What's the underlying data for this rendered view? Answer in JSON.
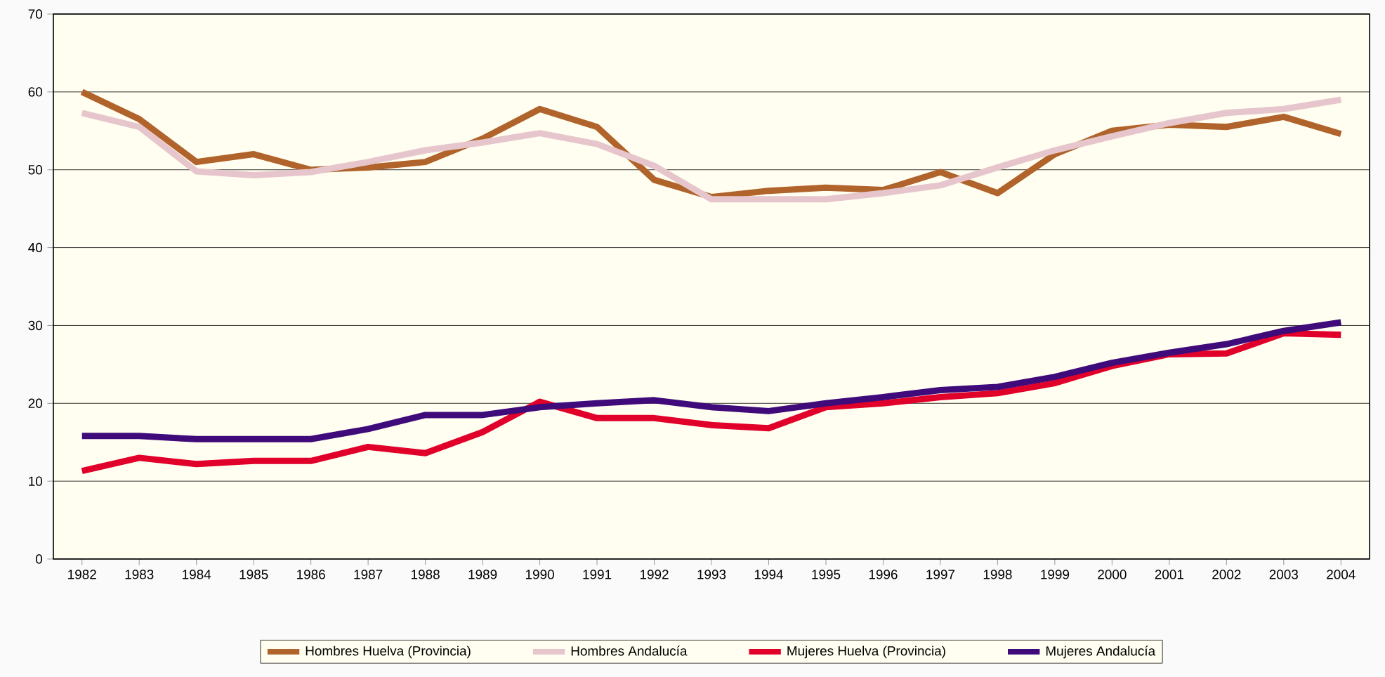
{
  "chart_data": {
    "type": "line",
    "categories": [
      "1982",
      "1983",
      "1984",
      "1985",
      "1986",
      "1987",
      "1988",
      "1989",
      "1990",
      "1991",
      "1992",
      "1993",
      "1994",
      "1995",
      "1996",
      "1997",
      "1998",
      "1999",
      "2000",
      "2001",
      "2002",
      "2003",
      "2004"
    ],
    "series": [
      {
        "name": "Hombres Huelva (Provincia)",
        "color": "#b0632a",
        "values": [
          60,
          56.5,
          51,
          52,
          50,
          50.3,
          51,
          54,
          57.8,
          55.5,
          48.7,
          46.5,
          47.3,
          47.7,
          47.4,
          49.7,
          47,
          52,
          55,
          55.8,
          55.5,
          56.8,
          54.6
        ]
      },
      {
        "name": "Hombres Andalucía",
        "color": "#e6c6cc",
        "values": [
          57.3,
          55.5,
          49.8,
          49.3,
          49.7,
          51,
          52.5,
          53.5,
          54.7,
          53.3,
          50.5,
          46.2,
          46.2,
          46.2,
          47,
          48,
          50.3,
          52.5,
          54.3,
          56,
          57.3,
          57.8,
          59
        ]
      },
      {
        "name": "Mujeres Huelva  (Provincia)",
        "color": "#e0002a",
        "values": [
          11.3,
          13,
          12.2,
          12.6,
          12.6,
          14.4,
          13.6,
          16.3,
          20.2,
          18.1,
          18.1,
          17.2,
          16.8,
          19.5,
          20,
          20.8,
          21.3,
          22.6,
          24.8,
          26.3,
          26.4,
          29,
          28.8
        ]
      },
      {
        "name": "Mujeres Andalucía",
        "color": "#3f0a7a",
        "values": [
          15.8,
          15.8,
          15.4,
          15.4,
          15.4,
          16.7,
          18.5,
          18.5,
          19.5,
          20,
          20.4,
          19.5,
          19,
          20,
          20.8,
          21.7,
          22.1,
          23.4,
          25.2,
          26.5,
          27.6,
          29.3,
          30.4
        ]
      }
    ],
    "ylim": [
      0,
      70
    ],
    "yticks": [
      0,
      10,
      20,
      30,
      40,
      50,
      60,
      70
    ],
    "grid": "y",
    "legend": "bottom",
    "marker": "none",
    "line_style": "solid"
  }
}
